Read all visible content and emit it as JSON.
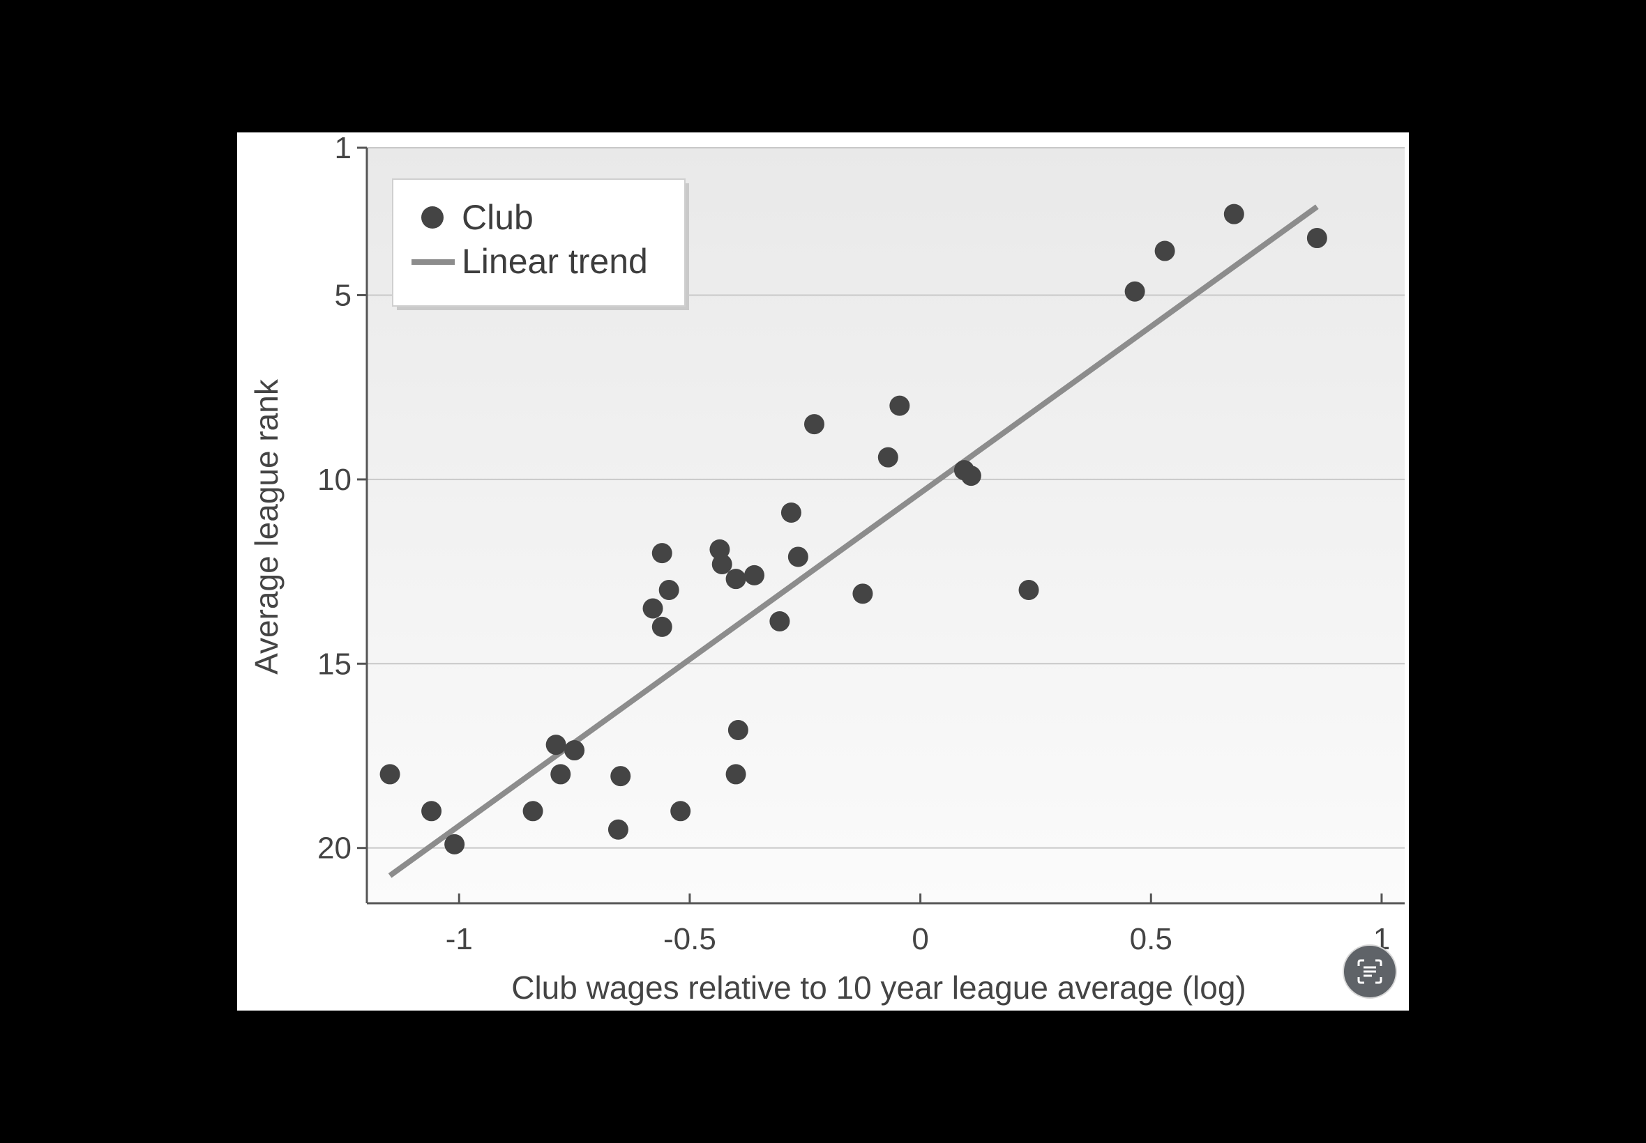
{
  "chart_data": {
    "type": "scatter",
    "xlabel": "Club wages relative to 10 year league average (log)",
    "ylabel": "Average league rank",
    "xlim": [
      -1.2,
      1.05
    ],
    "ylim": [
      21.5,
      1
    ],
    "y_axis_inverted": true,
    "x_ticks": [
      -1,
      -0.5,
      0,
      0.5,
      1
    ],
    "x_tick_labels": [
      "-1",
      "-0.5",
      "0",
      "0.5",
      "1"
    ],
    "y_ticks": [
      1,
      5,
      10,
      15,
      20
    ],
    "y_tick_labels": [
      "1",
      "5",
      "10",
      "15",
      "20"
    ],
    "grid": "horizontal",
    "legend_position": "top-left",
    "series": [
      {
        "name": "Club",
        "kind": "points",
        "color": "#444444",
        "points": [
          {
            "x": -1.15,
            "y": 18.0
          },
          {
            "x": -1.06,
            "y": 19.0
          },
          {
            "x": -1.01,
            "y": 19.9
          },
          {
            "x": -0.84,
            "y": 19.0
          },
          {
            "x": -0.79,
            "y": 17.2
          },
          {
            "x": -0.78,
            "y": 18.0
          },
          {
            "x": -0.75,
            "y": 17.35
          },
          {
            "x": -0.65,
            "y": 18.05
          },
          {
            "x": -0.655,
            "y": 19.5
          },
          {
            "x": -0.52,
            "y": 19.0
          },
          {
            "x": -0.58,
            "y": 13.5
          },
          {
            "x": -0.56,
            "y": 14.0
          },
          {
            "x": -0.56,
            "y": 12.0
          },
          {
            "x": -0.545,
            "y": 13.0
          },
          {
            "x": -0.435,
            "y": 11.9
          },
          {
            "x": -0.43,
            "y": 12.3
          },
          {
            "x": -0.4,
            "y": 12.7
          },
          {
            "x": -0.36,
            "y": 12.6
          },
          {
            "x": -0.395,
            "y": 16.8
          },
          {
            "x": -0.4,
            "y": 18.0
          },
          {
            "x": -0.305,
            "y": 13.85
          },
          {
            "x": -0.28,
            "y": 10.9
          },
          {
            "x": -0.265,
            "y": 12.1
          },
          {
            "x": -0.23,
            "y": 8.5
          },
          {
            "x": -0.125,
            "y": 13.1
          },
          {
            "x": -0.07,
            "y": 9.4
          },
          {
            "x": -0.045,
            "y": 8.0
          },
          {
            "x": 0.095,
            "y": 9.75
          },
          {
            "x": 0.11,
            "y": 9.9
          },
          {
            "x": 0.235,
            "y": 13.0
          },
          {
            "x": 0.465,
            "y": 4.9
          },
          {
            "x": 0.53,
            "y": 3.8
          },
          {
            "x": 0.68,
            "y": 2.8
          },
          {
            "x": 0.86,
            "y": 3.45
          }
        ]
      },
      {
        "name": "Linear trend",
        "kind": "line",
        "color": "#8c8c8c",
        "points": [
          {
            "x": -1.15,
            "y": 20.75
          },
          {
            "x": 0.86,
            "y": 2.6
          }
        ]
      }
    ]
  },
  "icons": {
    "lens_button": "google-lens-icon"
  }
}
